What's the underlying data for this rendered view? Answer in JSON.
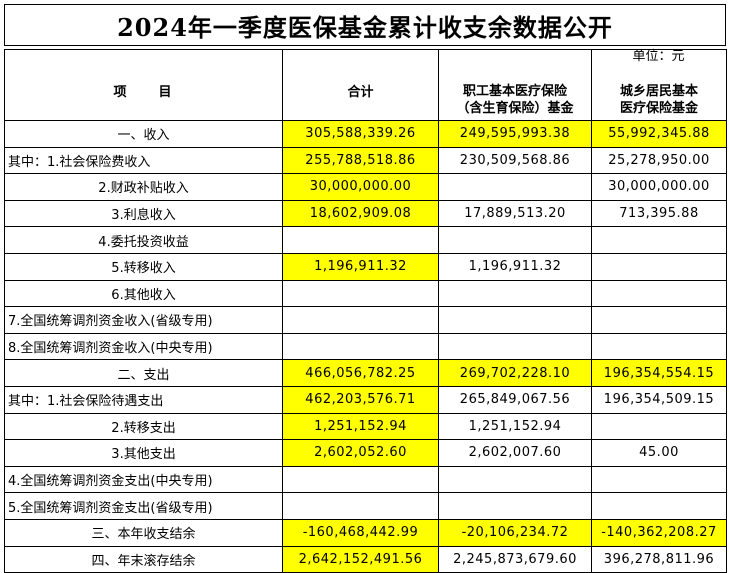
{
  "title": "2024年一季度医保基金累计收支余数据公开",
  "unit": "单位：元",
  "headers": {
    "item": "项　　目",
    "total": "合计",
    "employee_line1": "职工基本医疗保险",
    "employee_line2": "（含生育保险）基金",
    "resident_line1": "城乡居民基本",
    "resident_line2": "医疗保险基金"
  },
  "colors": {
    "highlight": "#ffff00",
    "border": "#000000"
  },
  "rows": [
    {
      "label": "一、收入",
      "total": "305,588,339.26",
      "employee": "249,595,993.38",
      "resident": "55,992,345.88"
    },
    {
      "label": "其中：1.社会保险费收入",
      "total": "255,788,518.86",
      "employee": "230,509,568.86",
      "resident": "25,278,950.00"
    },
    {
      "label": "2.财政补贴收入",
      "total": "30,000,000.00",
      "employee": "",
      "resident": "30,000,000.00"
    },
    {
      "label": "3.利息收入",
      "total": "18,602,909.08",
      "employee": "17,889,513.20",
      "resident": "713,395.88"
    },
    {
      "label": "4.委托投资收益",
      "total": "",
      "employee": "",
      "resident": ""
    },
    {
      "label": "5.转移收入",
      "total": "1,196,911.32",
      "employee": "1,196,911.32",
      "resident": ""
    },
    {
      "label": "6.其他收入",
      "total": "",
      "employee": "",
      "resident": ""
    },
    {
      "label": "7.全国统筹调剂资金收入(省级专用)",
      "total": "",
      "employee": "",
      "resident": ""
    },
    {
      "label": "8.全国统筹调剂资金收入(中央专用)",
      "total": "",
      "employee": "",
      "resident": ""
    },
    {
      "label": "二、支出",
      "total": "466,056,782.25",
      "employee": "269,702,228.10",
      "resident": "196,354,554.15"
    },
    {
      "label": "其中：1.社会保险待遇支出",
      "total": "462,203,576.71",
      "employee": "265,849,067.56",
      "resident": "196,354,509.15"
    },
    {
      "label": "2.转移支出",
      "total": "1,251,152.94",
      "employee": "1,251,152.94",
      "resident": ""
    },
    {
      "label": "3.其他支出",
      "total": "2,602,052.60",
      "employee": "2,602,007.60",
      "resident": "45.00"
    },
    {
      "label": "4.全国统筹调剂资金支出(中央专用)",
      "total": "",
      "employee": "",
      "resident": ""
    },
    {
      "label": "5.全国统筹调剂资金支出(省级专用)",
      "total": "",
      "employee": "",
      "resident": ""
    },
    {
      "label": "三、本年收支结余",
      "total": "-160,468,442.99",
      "employee": "-20,106,234.72",
      "resident": "-140,362,208.27"
    },
    {
      "label": "四、年末滚存结余",
      "total": "2,642,152,491.56",
      "employee": "2,245,873,679.60",
      "resident": "396,278,811.96"
    }
  ]
}
